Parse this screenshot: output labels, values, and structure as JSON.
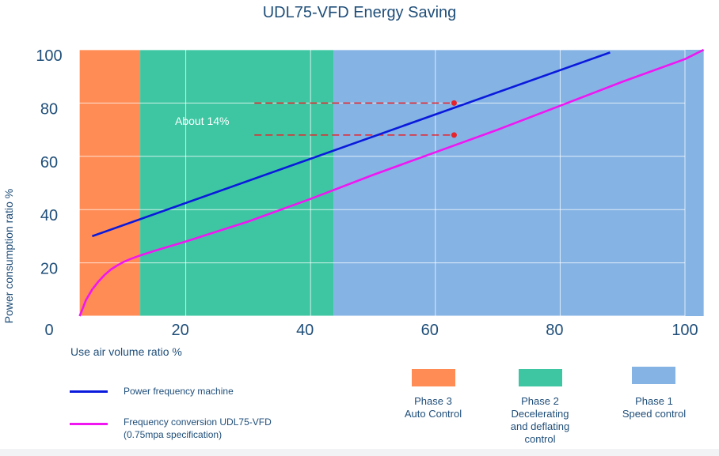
{
  "chart_data": {
    "type": "line",
    "title": "UDL75-VFD Energy Saving",
    "xlabel": "Use air volume ratio %",
    "ylabel": "Power consumption ratio %",
    "xlim": [
      0,
      100
    ],
    "ylim": [
      0,
      100
    ],
    "x_ticks": [
      0,
      20,
      40,
      60,
      80,
      100
    ],
    "y_ticks": [
      20,
      40,
      60,
      80,
      100
    ],
    "grid": true,
    "phases": [
      {
        "name": "Phase 3 Auto Control",
        "lines": [
          "Phase 3",
          "Auto Control"
        ],
        "x_range": [
          3,
          12.7
        ],
        "color": "#ff8c55"
      },
      {
        "name": "Phase 2 Decelerating and deflating control",
        "lines": [
          "Phase 2",
          "Decelerating",
          "and deflating",
          "control"
        ],
        "x_range": [
          12.7,
          43.7
        ],
        "color": "#3ec6a2"
      },
      {
        "name": "Phase 1 Speed control",
        "lines": [
          "Phase 1",
          "Speed control"
        ],
        "x_range": [
          43.7,
          103
        ],
        "color": "#84b3e4"
      }
    ],
    "series": [
      {
        "name": "Power frequency machine",
        "color": "#0a1adc",
        "x": [
          5,
          88
        ],
        "y": [
          30,
          99
        ]
      },
      {
        "name": "Frequency conversion UDL75-VFD (0.75mpa specification)",
        "name_lines": [
          "Frequency conversion UDL75-VFD",
          "(0.75mpa specification)"
        ],
        "color": "#f016f2",
        "x": [
          3,
          3.5,
          4,
          5,
          6,
          7,
          8,
          9,
          10,
          11,
          12,
          13,
          15,
          20,
          30,
          40,
          50,
          60,
          70,
          80,
          90,
          100,
          103
        ],
        "y": [
          0,
          3,
          6,
          10,
          13,
          15.5,
          17.5,
          19,
          20.3,
          21.3,
          22.2,
          23,
          24.5,
          28,
          35.5,
          44,
          53,
          61.5,
          70,
          79,
          88,
          96.5,
          100
        ]
      }
    ],
    "annotations": {
      "text": "About 14%",
      "points": [
        {
          "x": 63,
          "y": 80
        },
        {
          "x": 63,
          "y": 68
        }
      ],
      "dashed_from_x": 31
    }
  }
}
